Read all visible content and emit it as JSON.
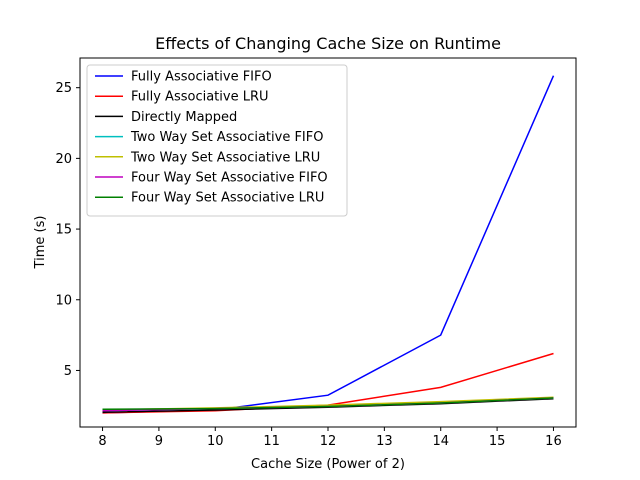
{
  "chart_data": {
    "type": "line",
    "title": "Effects of Changing Cache Size on Runtime",
    "xlabel": "Cache Size (Power of 2)",
    "ylabel": "Time (s)",
    "x": [
      8,
      10,
      12,
      14,
      16
    ],
    "xlim": [
      7.6,
      16.4
    ],
    "ylim": [
      1.0,
      27.1
    ],
    "xticks": [
      "8",
      "9",
      "10",
      "11",
      "12",
      "13",
      "14",
      "15",
      "16"
    ],
    "yticks": [
      "5",
      "10",
      "15",
      "20",
      "25"
    ],
    "legend_position": "upper-left",
    "grid": false,
    "series": [
      {
        "name": "Fully Associative FIFO",
        "color": "#0000ff",
        "values": [
          2.0,
          2.2,
          3.25,
          7.5,
          25.85
        ]
      },
      {
        "name": "Fully Associative LRU",
        "color": "#ff0000",
        "values": [
          2.0,
          2.15,
          2.55,
          3.8,
          6.2
        ]
      },
      {
        "name": "Directly Mapped",
        "color": "#000000",
        "values": [
          2.05,
          2.2,
          2.4,
          2.65,
          3.0
        ]
      },
      {
        "name": "Two Way Set Associative FIFO",
        "color": "#00bfbf",
        "values": [
          2.15,
          2.3,
          2.5,
          2.75,
          3.05
        ]
      },
      {
        "name": "Two Way Set Associative LRU",
        "color": "#bfbf00",
        "values": [
          2.2,
          2.35,
          2.55,
          2.8,
          3.1
        ]
      },
      {
        "name": "Four Way Set Associative FIFO",
        "color": "#bf00bf",
        "values": [
          2.15,
          2.3,
          2.45,
          2.7,
          3.05
        ]
      },
      {
        "name": "Four Way Set Associative LRU",
        "color": "#008000",
        "values": [
          2.25,
          2.3,
          2.45,
          2.7,
          3.05
        ]
      }
    ]
  }
}
